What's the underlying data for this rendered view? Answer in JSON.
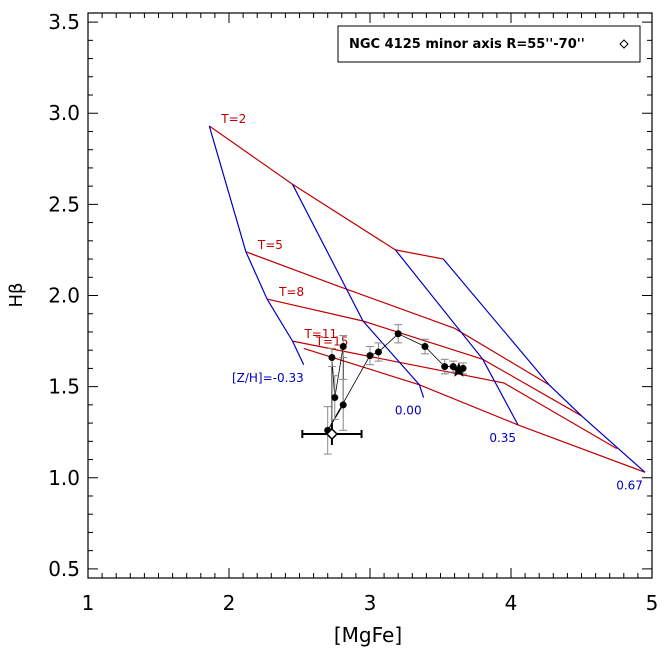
{
  "chart_data": {
    "type": "line",
    "title": "",
    "xlabel": "[MgFe]",
    "ylabel": "Hβ",
    "xlim": [
      1,
      5
    ],
    "ylim": [
      0.45,
      3.55
    ],
    "x_ticks": [
      "1",
      "2",
      "3",
      "4",
      "5"
    ],
    "y_ticks": [
      "0.5",
      "1.0",
      "1.5",
      "2.0",
      "2.5",
      "3.0",
      "3.5"
    ],
    "legend": {
      "label": "NGC 4125 minor axis R=55''-70''",
      "marker": "diamond",
      "placement": "top-right"
    },
    "grid": false,
    "colors": {
      "age_lines": "#c00000",
      "metal_lines": "#0000c0",
      "data": "#000000",
      "errors": "#888888"
    },
    "age_lines": [
      {
        "label": "T=2",
        "points": [
          [
            1.86,
            2.93
          ],
          [
            2.45,
            2.61
          ],
          [
            3.18,
            2.25
          ],
          [
            3.52,
            2.2
          ]
        ]
      },
      {
        "label": "T=5",
        "points": [
          [
            2.12,
            2.24
          ],
          [
            2.78,
            2.05
          ],
          [
            3.6,
            1.82
          ],
          [
            4.27,
            1.51
          ]
        ]
      },
      {
        "label": "T=8",
        "points": [
          [
            2.27,
            1.98
          ],
          [
            2.95,
            1.86
          ],
          [
            3.8,
            1.65
          ],
          [
            4.5,
            1.34
          ]
        ]
      },
      {
        "label": "T=11",
        "points": [
          [
            2.45,
            1.75
          ],
          [
            3.1,
            1.65
          ],
          [
            3.95,
            1.52
          ],
          [
            4.75,
            1.16
          ]
        ]
      },
      {
        "label": "T=15",
        "points": [
          [
            2.53,
            1.71
          ],
          [
            3.35,
            1.51
          ],
          [
            4.05,
            1.29
          ],
          [
            4.95,
            1.03
          ]
        ]
      }
    ],
    "metal_lines": [
      {
        "label": "[Z/H]=-0.33",
        "points": [
          [
            1.86,
            2.93
          ],
          [
            2.12,
            2.24
          ],
          [
            2.27,
            1.98
          ],
          [
            2.45,
            1.75
          ],
          [
            2.53,
            1.62
          ]
        ]
      },
      {
        "label": "0.00",
        "points": [
          [
            2.45,
            2.61
          ],
          [
            2.95,
            1.86
          ],
          [
            3.35,
            1.51
          ],
          [
            3.38,
            1.44
          ]
        ]
      },
      {
        "label": "0.35",
        "points": [
          [
            3.18,
            2.25
          ],
          [
            3.8,
            1.65
          ],
          [
            4.05,
            1.29
          ]
        ]
      },
      {
        "label": "0.67",
        "points": [
          [
            3.52,
            2.2
          ],
          [
            4.27,
            1.51
          ],
          [
            4.5,
            1.34
          ],
          [
            4.95,
            1.03
          ]
        ]
      }
    ],
    "series": [
      {
        "points": [
          {
            "x": 2.73,
            "y": 1.66,
            "err": 0.05
          },
          {
            "x": 2.75,
            "y": 1.44,
            "err": 0.12
          },
          {
            "x": 2.81,
            "y": 1.72,
            "err": 0.06
          },
          {
            "x": 2.81,
            "y": 1.4,
            "err": 0.14
          },
          {
            "x": 2.7,
            "y": 1.26,
            "err": 0.13
          },
          {
            "x": 3.0,
            "y": 1.67,
            "err": 0.05
          },
          {
            "x": 3.06,
            "y": 1.69,
            "err": 0.05
          },
          {
            "x": 3.2,
            "y": 1.79,
            "err": 0.05
          },
          {
            "x": 3.39,
            "y": 1.72,
            "err": 0.04
          },
          {
            "x": 3.53,
            "y": 1.61,
            "err": 0.04
          },
          {
            "x": 3.59,
            "y": 1.61,
            "err": 0.03
          },
          {
            "x": 3.66,
            "y": 1.6,
            "err": 0.03
          }
        ],
        "mean": {
          "x": 2.73,
          "y": 1.24,
          "xerr": 0.21,
          "yerr": 0.06
        },
        "star": {
          "x": 3.63,
          "y": 1.59
        }
      }
    ]
  }
}
